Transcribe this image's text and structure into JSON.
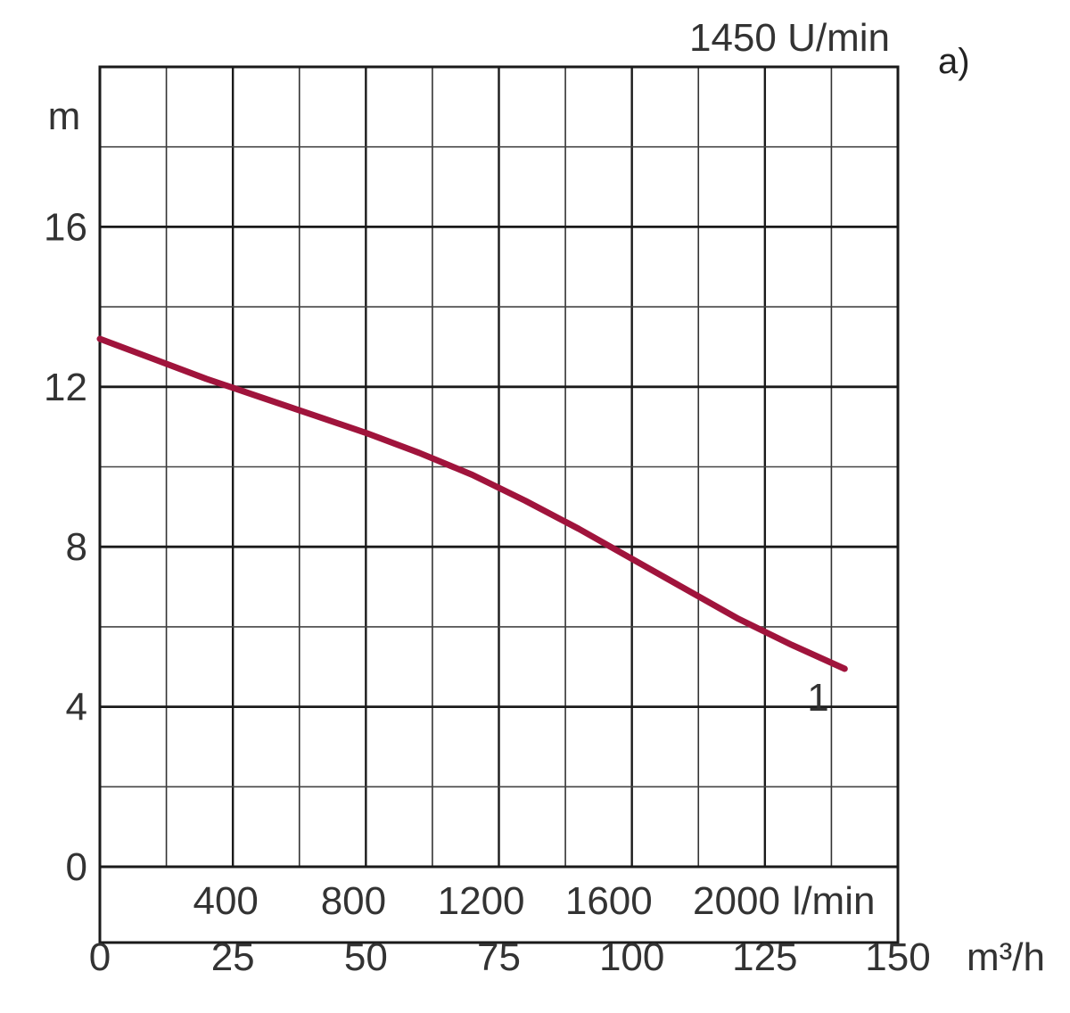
{
  "chart_data": {
    "type": "line",
    "title": "1450 U/min",
    "panel_label": "a)",
    "xlabel": "m³/h",
    "ylabel": "m",
    "secondary_xlabel": "l/min",
    "xlim": [
      0,
      150
    ],
    "ylim": [
      0,
      20
    ],
    "grid": true,
    "x_ticks": [
      0,
      25,
      50,
      75,
      100,
      125,
      150
    ],
    "y_ticks": [
      0,
      4,
      8,
      12,
      16
    ],
    "secondary_x_ticks": [
      400,
      800,
      1200,
      1600,
      2000
    ],
    "series": [
      {
        "name": "1",
        "color": "#a0143c",
        "x": [
          0,
          10,
          20,
          30,
          40,
          50,
          60,
          70,
          80,
          90,
          100,
          110,
          120,
          130,
          140
        ],
        "y": [
          13.2,
          12.7,
          12.2,
          11.75,
          11.3,
          10.85,
          10.35,
          9.8,
          9.15,
          8.45,
          7.7,
          6.95,
          6.2,
          5.55,
          4.95
        ]
      }
    ],
    "annotations": [
      {
        "text": "1",
        "x": 135,
        "y": 4.3
      }
    ]
  }
}
